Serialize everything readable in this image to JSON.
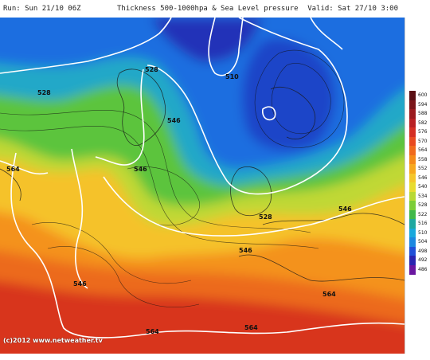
{
  "header": {
    "run": "Run: Sun 21/10 06Z",
    "title": "Thickness 500-1000hpa & Sea Level pressure",
    "valid": "Valid: Sat 27/10 3:00"
  },
  "contour_labels": [
    "528",
    "528",
    "510",
    "546",
    "546",
    "546",
    "564",
    "546",
    "528",
    "564",
    "546",
    "564",
    "564"
  ],
  "legend": {
    "ticks": [
      "600",
      "594",
      "588",
      "582",
      "576",
      "570",
      "564",
      "558",
      "552",
      "546",
      "540",
      "534",
      "528",
      "522",
      "516",
      "510",
      "504",
      "498",
      "492",
      "486"
    ],
    "colors": [
      "#5a0f14",
      "#7b1519",
      "#9b1a1e",
      "#b81f22",
      "#d42e22",
      "#e84a20",
      "#f06a1c",
      "#f58a18",
      "#f7a81d",
      "#f5c62a",
      "#e8dc30",
      "#b8d934",
      "#7ccd38",
      "#40b84a",
      "#1fa8a0",
      "#19a8dc",
      "#1c88e0",
      "#2050d8",
      "#2a24b0",
      "#6a16a0"
    ]
  },
  "copyright": "(c)2012 www.netweather.tv"
}
